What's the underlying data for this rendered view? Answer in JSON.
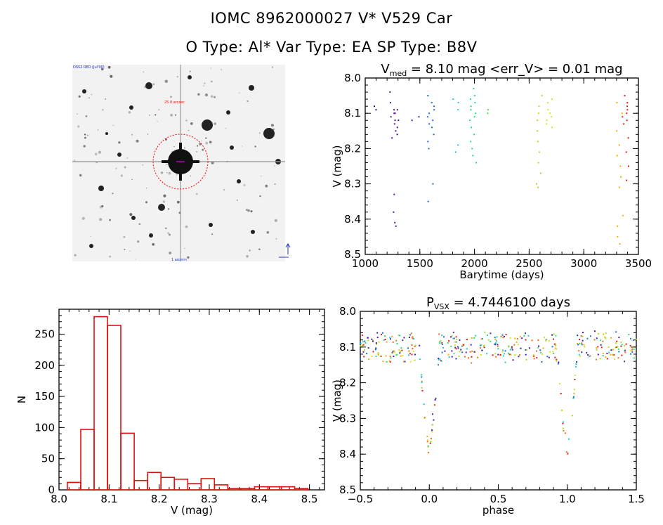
{
  "header": {
    "line1": "IOMC 8962000027    V* V529 Car",
    "line2": "O Type: Al*   Var Type: EA   SP Type: B8V"
  },
  "image_panel": {
    "corner_tl": "DSS2 RED (Jul'90)",
    "center_label": "25.0 arcsec",
    "bottom_label": "1 arcmin",
    "marker_color": "#ff0000"
  },
  "chart_data": [
    {
      "id": "lightcurve",
      "type": "scatter",
      "title_prefix": "V",
      "title_sub": "med",
      "title_rest": " = 8.10 mag  <err_V> = 0.01 mag",
      "xlabel": "Barytime (days)",
      "ylabel": "V (mag)",
      "xlim": [
        1000,
        3500
      ],
      "ylim": [
        8.5,
        8.0
      ],
      "xticks": [
        "1000",
        "1500",
        "2000",
        "2500",
        "3000",
        "3500"
      ],
      "yticks": [
        "8.0",
        "8.1",
        "8.2",
        "8.3",
        "8.4",
        "8.5"
      ],
      "clusters": [
        {
          "x": 1100,
          "y": [
            8.08,
            8.09
          ],
          "color": "#3a0a8a"
        },
        {
          "x": 1255,
          "y": [
            8.04,
            8.07,
            8.09,
            8.1,
            8.11,
            8.12,
            8.13,
            8.15,
            8.17,
            8.33,
            8.38,
            8.41,
            8.42
          ],
          "color": "#5a1a9a"
        },
        {
          "x": 1280,
          "y": [
            8.09,
            8.1,
            8.12,
            8.14,
            8.16
          ],
          "color": "#4b0e8c"
        },
        {
          "x": 1460,
          "y": [
            8.11,
            8.12
          ],
          "color": "#2c2cb0"
        },
        {
          "x": 1600,
          "y": [
            8.05,
            8.07,
            8.08,
            8.09,
            8.1,
            8.11,
            8.12,
            8.13,
            8.14,
            8.16,
            8.18,
            8.2,
            8.3,
            8.35
          ],
          "color": "#1f6fd0"
        },
        {
          "x": 1830,
          "y": [
            8.06,
            8.07,
            8.09,
            8.19,
            8.21
          ],
          "color": "#20c8d8"
        },
        {
          "x": 1990,
          "y": [
            8.03,
            8.05,
            8.06,
            8.07,
            8.08,
            8.09,
            8.1,
            8.11,
            8.12,
            8.14,
            8.16,
            8.18,
            8.2,
            8.22,
            8.24
          ],
          "color": "#22e07a"
        },
        {
          "x": 2120,
          "y": [
            8.09,
            8.1
          ],
          "color": "#40e040"
        },
        {
          "x": 2600,
          "y": [
            8.05,
            8.08,
            8.1,
            8.12,
            8.15,
            8.18,
            8.21,
            8.24,
            8.27,
            8.3,
            8.31
          ],
          "color": "#a8e020"
        },
        {
          "x": 2680,
          "y": [
            8.06,
            8.07,
            8.09,
            8.1,
            8.11,
            8.12,
            8.13,
            8.14
          ],
          "color": "#e0e020"
        },
        {
          "x": 3330,
          "y": [
            8.07,
            8.1,
            8.15,
            8.19,
            8.22,
            8.25,
            8.28,
            8.31,
            8.39,
            8.42,
            8.45,
            8.47
          ],
          "color": "#f0b000"
        },
        {
          "x": 3380,
          "y": [
            8.05,
            8.07,
            8.08,
            8.09,
            8.1,
            8.11,
            8.12,
            8.13,
            8.17,
            8.21,
            8.25,
            8.29
          ],
          "color": "#e81a10"
        }
      ]
    },
    {
      "id": "histogram",
      "type": "bar",
      "xlabel": "V (mag)",
      "ylabel": "N",
      "xlim": [
        8.0,
        8.53
      ],
      "ylim": [
        0,
        290
      ],
      "xticks": [
        "8.0",
        "8.1",
        "8.2",
        "8.3",
        "8.4",
        "8.5"
      ],
      "yticks": [
        "0",
        "50",
        "100",
        "150",
        "200",
        "250"
      ],
      "bin_start": 8.0167,
      "bin_width": 0.0267,
      "values": [
        12,
        97,
        278,
        264,
        91,
        15,
        28,
        20,
        17,
        10,
        18,
        8,
        2,
        2,
        5,
        5,
        5,
        2
      ],
      "color": "#e01010"
    },
    {
      "id": "phased",
      "type": "scatter",
      "title_prefix": "P",
      "title_sub": "VSX",
      "title_rest": " = 4.7446100 days",
      "xlabel": "phase",
      "ylabel": "V (mag)",
      "xlim": [
        -0.5,
        1.5
      ],
      "ylim": [
        8.5,
        8.0
      ],
      "xticks": [
        "−0.5",
        "0.0",
        "0.5",
        "1.0",
        "1.5"
      ],
      "yticks": [
        "8.0",
        "8.1",
        "8.2",
        "8.3",
        "8.4",
        "8.5"
      ],
      "eclipse_phase": 0.0,
      "period_fold": 1.0
    }
  ]
}
